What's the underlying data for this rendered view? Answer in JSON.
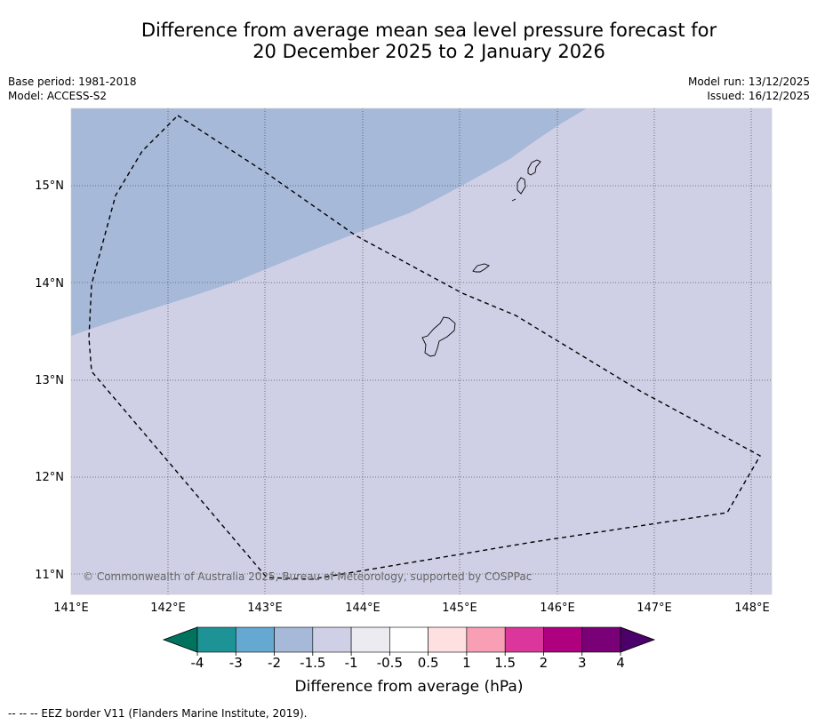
{
  "title": {
    "line1": "Difference from average mean sea level pressure forecast for",
    "line2": "20 December 2025 to 2 January 2026"
  },
  "meta": {
    "base_period": "Base period: 1981-2018",
    "model": "Model: ACCESS-S2",
    "model_run": "Model run: 13/12/2025",
    "issued": "Issued: 16/12/2025"
  },
  "map": {
    "lon_labels": [
      "141°E",
      "142°E",
      "143°E",
      "144°E",
      "145°E",
      "146°E",
      "147°E",
      "148°E"
    ],
    "lat_labels": [
      "15°N",
      "14°N",
      "13°N",
      "12°N",
      "11°N"
    ],
    "copyright": "© Commonwealth of Australia 2025, Bureau of Meteorology, supported by COSPPac",
    "fill_colors": {
      "band_minus2_to_minus1_5": "#a6b9d9",
      "band_minus1_5_to_minus1": "#cfd0e6"
    }
  },
  "colorbar": {
    "label": "Difference from average (hPa)",
    "ticks": [
      "-4",
      "-3",
      "-2",
      "-1.5",
      "-1",
      "-0.5",
      "0.5",
      "1",
      "1.5",
      "2",
      "3",
      "4"
    ],
    "under_color": "#00735f",
    "colors": [
      "#1d9396",
      "#65a9d2",
      "#a6b9d9",
      "#cfd0e6",
      "#ecebf2",
      "#ffffff",
      "#ffe0e0",
      "#f99fb5",
      "#db369c",
      "#ae007f",
      "#7a0077"
    ],
    "over_color": "#4b006a"
  },
  "footer": {
    "eez_note": "--  --  -- EEZ border V11 (Flanders Marine Institute, 2019)."
  }
}
